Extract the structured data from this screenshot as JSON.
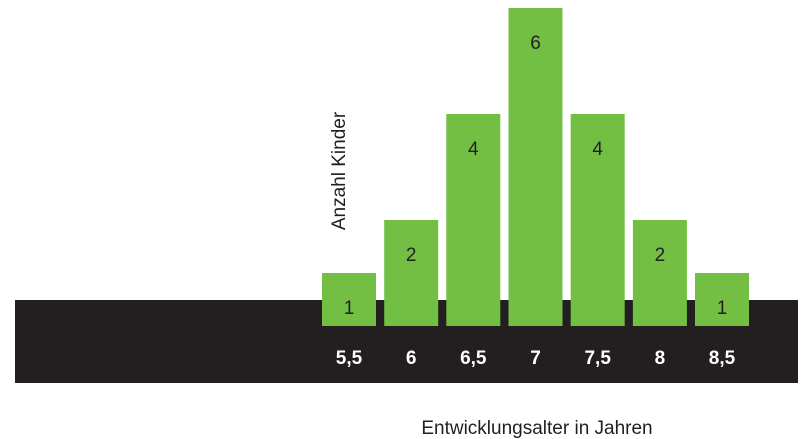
{
  "chart_data": {
    "type": "bar",
    "categories": [
      "5,5",
      "6",
      "6,5",
      "7",
      "7,5",
      "8",
      "8,5"
    ],
    "values": [
      1,
      2,
      4,
      6,
      4,
      2,
      1
    ],
    "data_labels": [
      "1",
      "2",
      "4",
      "6",
      "4",
      "2",
      "1"
    ],
    "title": "",
    "xlabel": "Entwicklungsalter in Jahren",
    "ylabel": "Anzahl Kinder",
    "ylim": [
      0,
      6
    ],
    "grid": false,
    "legend": "none",
    "colors": {
      "bar": "#73bf44",
      "axis_band": "#231f20",
      "tick_text": "#ffffff",
      "label_text": "#231f20"
    }
  }
}
